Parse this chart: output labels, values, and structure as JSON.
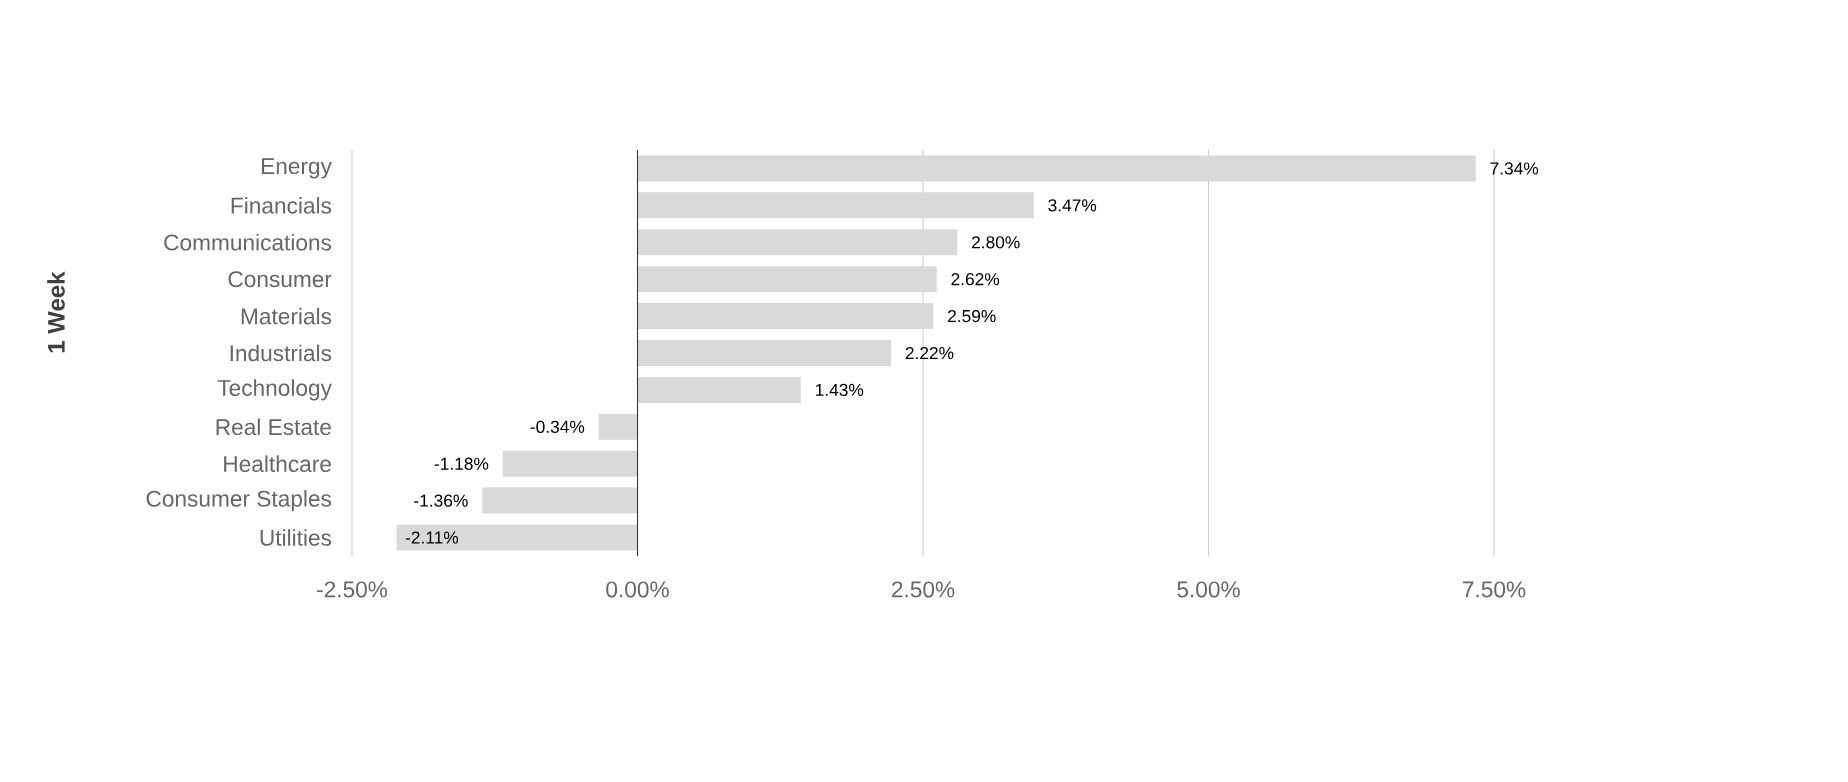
{
  "chart_data": {
    "type": "bar",
    "orientation": "horizontal",
    "ylabel": "1 Week",
    "categories": [
      "Energy",
      "Financials",
      "Communications",
      "Consumer",
      "Materials",
      "Industrials",
      "Technology",
      "Real Estate",
      "Healthcare",
      "Consumer Staples",
      "Utilities"
    ],
    "values": [
      7.34,
      3.47,
      2.8,
      2.62,
      2.59,
      2.22,
      1.43,
      -0.34,
      -1.18,
      -1.36,
      -2.11
    ],
    "value_labels": [
      "7.34%",
      "3.47%",
      "2.80%",
      "2.62%",
      "2.59%",
      "2.22%",
      "1.43%",
      "-0.34%",
      "-1.18%",
      "-1.36%",
      "-2.11%"
    ],
    "color": "#d9d9d9",
    "xlim": [
      -2.5,
      7.5
    ],
    "xticks": [
      {
        "value": -2.5,
        "label": "-2.50%"
      },
      {
        "value": 0,
        "label": "0.00%"
      },
      {
        "value": 2.5,
        "label": "2.50%"
      },
      {
        "value": 5,
        "label": "5.00%"
      },
      {
        "value": 7.5,
        "label": "7.50%"
      }
    ],
    "grid": "x"
  }
}
